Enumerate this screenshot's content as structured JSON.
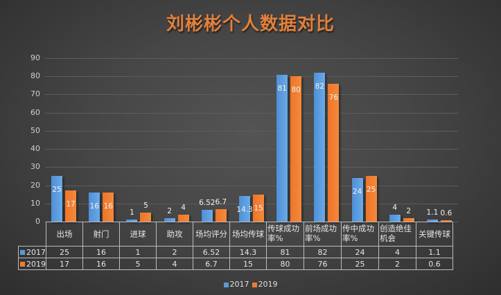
{
  "chart_data": {
    "type": "bar",
    "title": "刘彬彬个人数据对比",
    "categories": [
      "出场",
      "射门",
      "进球",
      "助攻",
      "场均评分",
      "场均传球",
      "传球成功率%",
      "前场成功率%",
      "传中成功率%",
      "创造绝佳机会",
      "关键传球"
    ],
    "series": [
      {
        "name": "2017",
        "color": "#5b9bd5",
        "values": [
          25,
          16,
          1,
          2,
          6.52,
          14.3,
          81,
          82,
          24,
          4,
          1.1
        ],
        "labels": [
          "25",
          "16",
          "1",
          "2",
          "6.52",
          "14.3",
          "81",
          "82",
          "24",
          "4",
          "1.1"
        ]
      },
      {
        "name": "2019",
        "color": "#ed7d31",
        "values": [
          17,
          16,
          5,
          4,
          6.7,
          15,
          80,
          76,
          25,
          2,
          0.6
        ],
        "labels": [
          "17",
          "16",
          "5",
          "4",
          "6.7",
          "15",
          "80",
          "76",
          "25",
          "2",
          "0.6"
        ]
      }
    ],
    "xlabel": "",
    "ylabel": "",
    "ylim": [
      0,
      90
    ],
    "yticks": [
      "0",
      "10",
      "20",
      "30",
      "40",
      "50",
      "60",
      "70",
      "80",
      "90"
    ],
    "grid": true,
    "legend_position": "bottom",
    "data_table": true
  },
  "legend": [
    {
      "label": "2017",
      "color": "#5b9bd5"
    },
    {
      "label": "2019",
      "color": "#ed7d31"
    }
  ]
}
